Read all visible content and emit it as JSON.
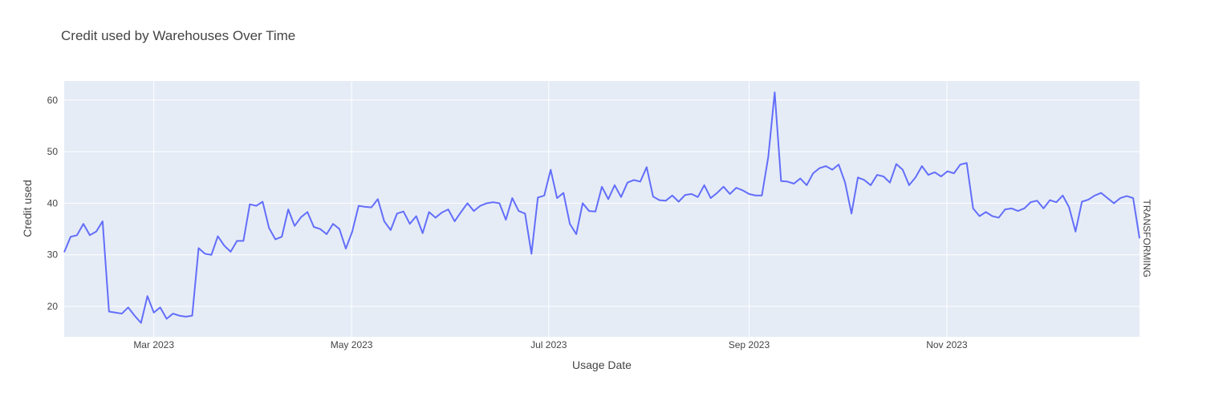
{
  "chart_data": {
    "type": "line",
    "title": "Credit used by Warehouses Over Time",
    "x_label": "Usage Date",
    "y_label": "Credit used",
    "series": [
      {
        "name": "TRANSFORMING",
        "color": "#636efa",
        "values": [
          30.5,
          33.5,
          33.8,
          36,
          33.8,
          34.5,
          36.5,
          19,
          18.8,
          18.6,
          19.8,
          18.2,
          16.8,
          22,
          18.8,
          19.8,
          17.6,
          18.6,
          18.2,
          18,
          18.2,
          31.3,
          30.2,
          30,
          33.6,
          31.8,
          30.6,
          32.7,
          32.7,
          39.8,
          39.5,
          40.3,
          35.2,
          33,
          33.5,
          38.8,
          35.6,
          37.3,
          38.3,
          35.4,
          35,
          34,
          36,
          35,
          31.2,
          34.5,
          39.5,
          39.3,
          39.2,
          40.8,
          36.5,
          34.8,
          38,
          38.4,
          36,
          37.5,
          34.2,
          38.3,
          37.2,
          38.2,
          38.8,
          36.5,
          38.3,
          40,
          38.5,
          39.5,
          40,
          40.2,
          40,
          36.8,
          41,
          38.5,
          38,
          30.2,
          41.1,
          41.5,
          46.5,
          41,
          42,
          36,
          34,
          40,
          38.5,
          38.4,
          43.2,
          40.8,
          43.5,
          41.2,
          44,
          44.5,
          44.2,
          47,
          41.3,
          40.6,
          40.5,
          41.5,
          40.3,
          41.6,
          41.8,
          41.2,
          43.5,
          41,
          42,
          43.2,
          41.8,
          43,
          42.5,
          41.8,
          41.5,
          41.5,
          49,
          61.5,
          44.3,
          44.2,
          43.8,
          44.8,
          43.5,
          45.8,
          46.8,
          47.2,
          46.5,
          47.5,
          44,
          38,
          45,
          44.5,
          43.5,
          45.5,
          45.2,
          44,
          47.6,
          46.5,
          43.5,
          45,
          47.2,
          45.5,
          46,
          45.2,
          46.2,
          45.8,
          47.5,
          47.8,
          39,
          37.5,
          38.3,
          37.5,
          37.2,
          38.8,
          39,
          38.5,
          39,
          40.2,
          40.5,
          39,
          40.6,
          40.2,
          41.5,
          39.2,
          34.5,
          40.3,
          40.7,
          41.5,
          42,
          41,
          40,
          41,
          41.4,
          41,
          33.2
        ]
      }
    ],
    "xlim": [
      0,
      168
    ],
    "xticks": [
      {
        "value": 14,
        "label": "Mar 2023"
      },
      {
        "value": 44.9,
        "label": "May 2023"
      },
      {
        "value": 75.7,
        "label": "Jul 2023"
      },
      {
        "value": 107,
        "label": "Sep 2023"
      },
      {
        "value": 137.9,
        "label": "Nov 2023"
      }
    ],
    "ylim": [
      14.1,
      63.7
    ],
    "yticks": [
      20,
      30,
      40,
      50,
      60
    ],
    "grid": true
  }
}
